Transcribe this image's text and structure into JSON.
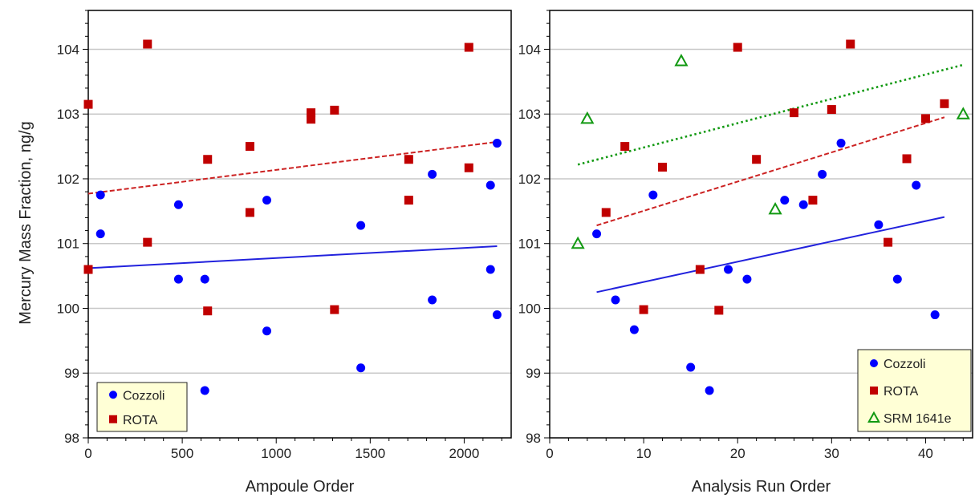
{
  "chart_data": [
    {
      "type": "scatter",
      "title": "",
      "xlabel": "Ampoule Order",
      "ylabel": "Mercury Mass Fraction, ng/g",
      "xlim": [
        0,
        2250
      ],
      "ylim": [
        98,
        104.6
      ],
      "xticks": [
        0,
        500,
        1000,
        1500,
        2000
      ],
      "yticks": [
        98,
        99,
        100,
        101,
        102,
        103,
        104
      ],
      "grid": "horizontal",
      "legend_position": "bottom-left",
      "series": [
        {
          "name": "Cozzoli",
          "marker": "circle",
          "color": "#0000ff",
          "points": [
            [
              65,
              101.75
            ],
            [
              65,
              101.15
            ],
            [
              480,
              101.6
            ],
            [
              480,
              100.45
            ],
            [
              620,
              100.45
            ],
            [
              620,
              98.73
            ],
            [
              950,
              101.67
            ],
            [
              950,
              99.65
            ],
            [
              1450,
              101.28
            ],
            [
              1450,
              99.08
            ],
            [
              1830,
              102.07
            ],
            [
              1830,
              100.13
            ],
            [
              2140,
              101.9
            ],
            [
              2140,
              100.6
            ],
            [
              2175,
              102.55
            ],
            [
              2175,
              99.9
            ]
          ]
        },
        {
          "name": "ROTA",
          "marker": "square",
          "color": "#c00000",
          "points": [
            [
              0,
              103.15
            ],
            [
              0,
              100.6
            ],
            [
              315,
              104.08
            ],
            [
              315,
              101.02
            ],
            [
              635,
              102.3
            ],
            [
              635,
              99.96
            ],
            [
              860,
              102.5
            ],
            [
              860,
              101.48
            ],
            [
              1185,
              103.02
            ],
            [
              1185,
              102.92
            ],
            [
              1310,
              103.06
            ],
            [
              1310,
              99.98
            ],
            [
              1705,
              102.3
            ],
            [
              1705,
              101.67
            ],
            [
              2025,
              104.03
            ],
            [
              2025,
              102.17
            ]
          ]
        }
      ],
      "trendlines": [
        {
          "series": "Cozzoli",
          "style": "solid",
          "color": "#2222dd",
          "from": [
            0,
            100.62
          ],
          "to": [
            2175,
            100.96
          ]
        },
        {
          "series": "ROTA",
          "style": "dashed",
          "color": "#cc2222",
          "from": [
            0,
            101.77
          ],
          "to": [
            2175,
            102.57
          ]
        }
      ]
    },
    {
      "type": "scatter",
      "title": "",
      "xlabel": "Analysis Run Order",
      "ylabel": "",
      "xlim": [
        0,
        45
      ],
      "ylim": [
        98,
        104.6
      ],
      "xticks": [
        0,
        10,
        20,
        30,
        40
      ],
      "yticks": [
        98,
        99,
        100,
        101,
        102,
        103,
        104
      ],
      "grid": "horizontal",
      "legend_position": "bottom-right",
      "series": [
        {
          "name": "Cozzoli",
          "marker": "circle",
          "color": "#0000ff",
          "points": [
            [
              5,
              101.15
            ],
            [
              7,
              100.13
            ],
            [
              9,
              99.67
            ],
            [
              11,
              101.75
            ],
            [
              15,
              99.09
            ],
            [
              17,
              98.73
            ],
            [
              19,
              100.6
            ],
            [
              21,
              100.45
            ],
            [
              25,
              101.67
            ],
            [
              27,
              101.6
            ],
            [
              29,
              102.07
            ],
            [
              31,
              102.55
            ],
            [
              35,
              101.29
            ],
            [
              37,
              100.45
            ],
            [
              39,
              101.9
            ],
            [
              41,
              99.9
            ]
          ]
        },
        {
          "name": "ROTA",
          "marker": "square",
          "color": "#c00000",
          "points": [
            [
              6,
              101.48
            ],
            [
              8,
              102.5
            ],
            [
              10,
              99.98
            ],
            [
              12,
              102.18
            ],
            [
              16,
              100.6
            ],
            [
              18,
              99.97
            ],
            [
              20,
              104.03
            ],
            [
              22,
              102.3
            ],
            [
              26,
              103.02
            ],
            [
              28,
              101.67
            ],
            [
              30,
              103.07
            ],
            [
              32,
              104.08
            ],
            [
              36,
              101.02
            ],
            [
              38,
              102.31
            ],
            [
              40,
              102.93
            ],
            [
              42,
              103.16
            ]
          ]
        },
        {
          "name": "SRM 1641e",
          "marker": "triangle-open",
          "color": "#119911",
          "points": [
            [
              3,
              101.0
            ],
            [
              4,
              102.93
            ],
            [
              14,
              103.82
            ],
            [
              24,
              101.53
            ],
            [
              44,
              103.0
            ]
          ]
        }
      ],
      "trendlines": [
        {
          "series": "Cozzoli",
          "style": "solid",
          "color": "#2222dd",
          "from": [
            5,
            100.25
          ],
          "to": [
            42,
            101.41
          ]
        },
        {
          "series": "ROTA",
          "style": "dashed",
          "color": "#cc2222",
          "from": [
            5,
            101.28
          ],
          "to": [
            42,
            102.95
          ]
        },
        {
          "series": "SRM 1641e",
          "style": "dotted",
          "color": "#119911",
          "from": [
            3,
            102.22
          ],
          "to": [
            44,
            103.76
          ]
        }
      ]
    }
  ]
}
